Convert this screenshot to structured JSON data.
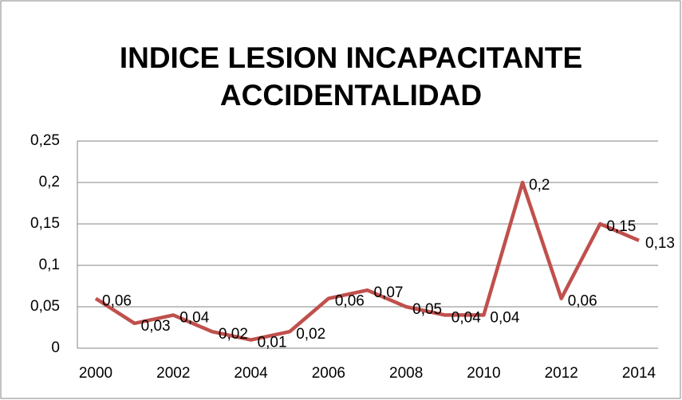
{
  "chart_data": {
    "type": "line",
    "title": [
      "INDICE LESION INCAPACITANTE",
      "ACCIDENTALIDAD"
    ],
    "x": [
      2000,
      2001,
      2002,
      2003,
      2004,
      2005,
      2006,
      2007,
      2008,
      2009,
      2010,
      2011,
      2012,
      2013,
      2014
    ],
    "series": [
      {
        "name": "INDICE LESION INCAPACITANTE ACCIDENTALIDAD",
        "color": "#c0504d",
        "values": [
          0.06,
          0.03,
          0.04,
          0.02,
          0.01,
          0.02,
          0.06,
          0.07,
          0.05,
          0.04,
          0.04,
          0.2,
          0.06,
          0.15,
          0.13
        ],
        "value_labels": [
          "0,06",
          "0,03",
          "0,04",
          "0,02",
          "0,01",
          "0,02",
          "0,06",
          "0,07",
          "0,05",
          "0,04",
          "0,04",
          "0,2",
          "0,06",
          "0,15",
          "0,13"
        ]
      }
    ],
    "xlim": [
      2000,
      2014
    ],
    "xticks": [
      2000,
      2002,
      2004,
      2006,
      2008,
      2010,
      2012,
      2014
    ],
    "ylim": [
      0,
      0.25
    ],
    "yticks": [
      0,
      {
        "value": 0.05,
        "label": "0,05"
      },
      {
        "value": 0.1,
        "label": "0,1"
      },
      {
        "value": 0.15,
        "label": "0,15"
      },
      {
        "value": 0.2,
        "label": "0,2"
      },
      {
        "value": 0.25,
        "label": "0,25"
      }
    ],
    "grid": true
  }
}
